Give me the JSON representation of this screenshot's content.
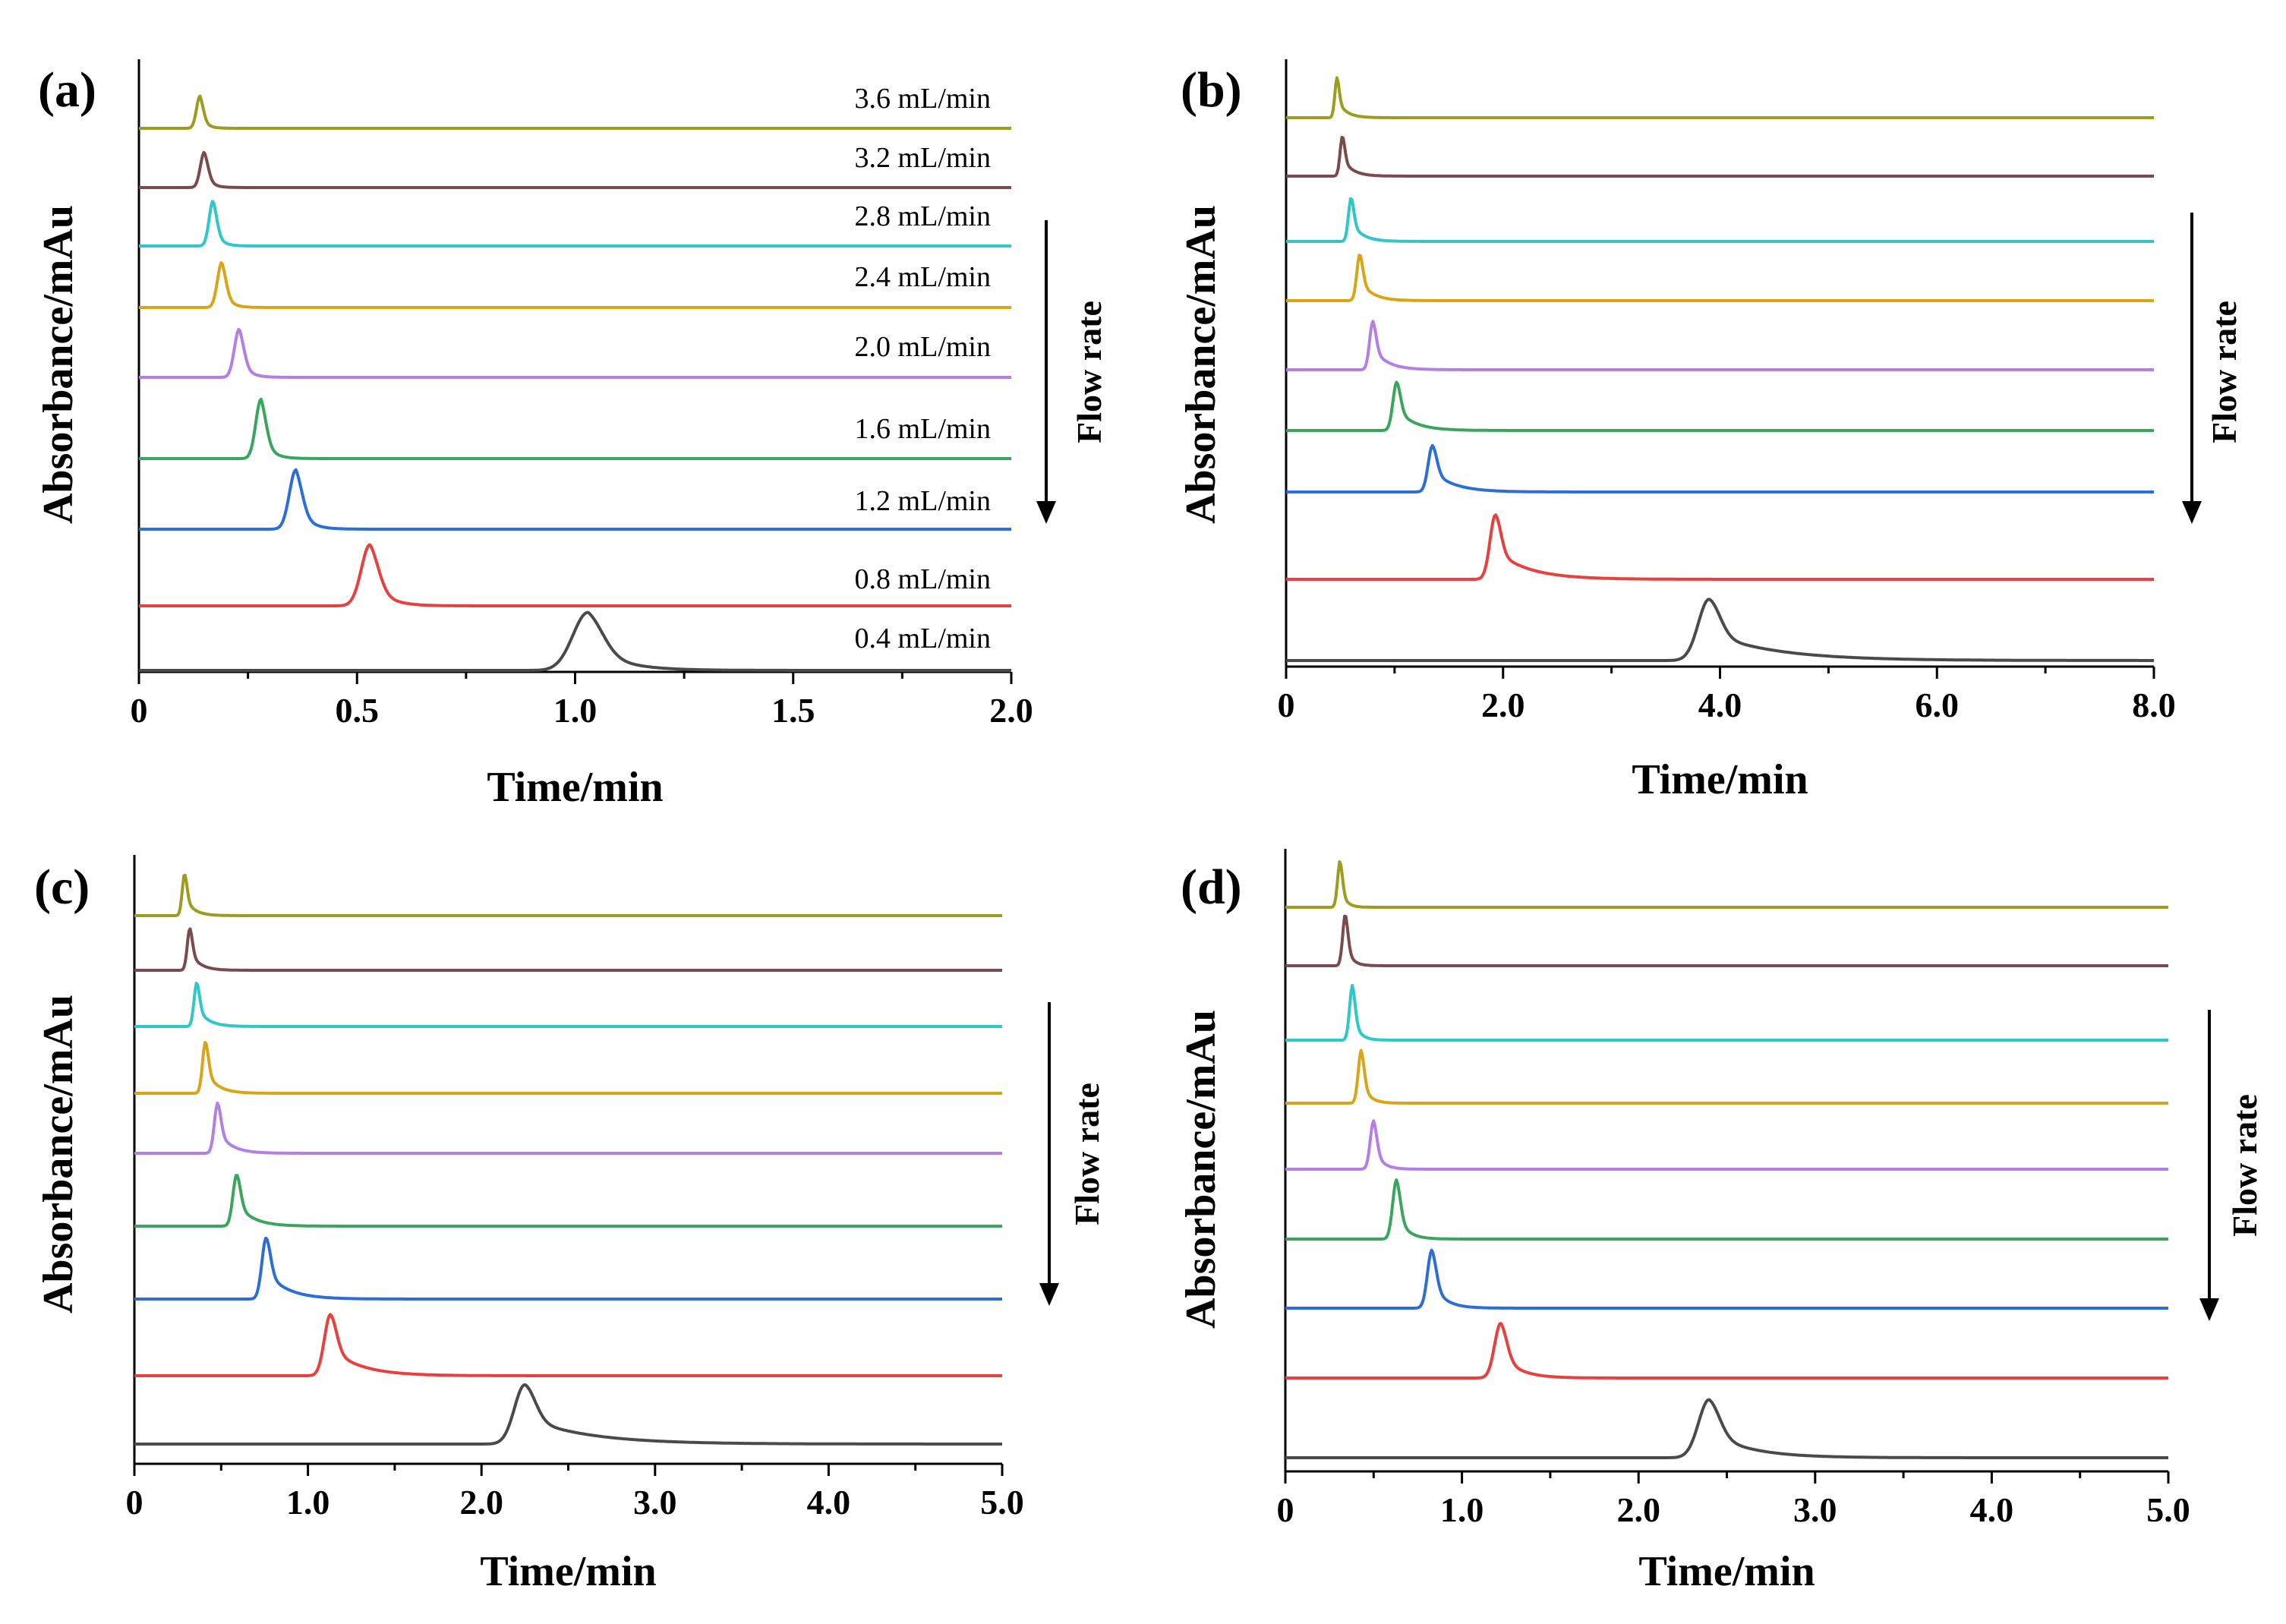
{
  "colors": {
    "s0": "#4a4a4a",
    "s1": "#e8403f",
    "s2": "#2b6fd4",
    "s3": "#3aa55c",
    "s4": "#b47ee6",
    "s5": "#d9a516",
    "s6": "#2fc7c7",
    "s7": "#7b4a4a",
    "s8": "#9c9c1e"
  },
  "flow_rate_label": "Flow rate",
  "chart_data": [
    {
      "panel": "(a)",
      "type": "line",
      "title": "",
      "xlabel": "Time/min",
      "ylabel": "Absorbance/mAu",
      "xlim": [
        0,
        2.0
      ],
      "xticks": [
        "0",
        "0.5",
        "1.0",
        "1.5",
        "2.0"
      ],
      "xtick_values": [
        0,
        0.5,
        1.0,
        1.5,
        2.0
      ],
      "grid": false,
      "annotation": "Flow rate (arrow pointing down)",
      "series": [
        {
          "name": "0.4 mL/min",
          "peak_time": 1.03,
          "peak_height": 0.9,
          "sigma": 0.035,
          "tail": 0.07
        },
        {
          "name": "0.8 mL/min",
          "peak_time": 0.53,
          "peak_height": 0.95,
          "sigma": 0.02,
          "tail": 0.035
        },
        {
          "name": "1.2 mL/min",
          "peak_time": 0.36,
          "peak_height": 0.92,
          "sigma": 0.015,
          "tail": 0.025
        },
        {
          "name": "1.6 mL/min",
          "peak_time": 0.28,
          "peak_height": 0.92,
          "sigma": 0.012,
          "tail": 0.02
        },
        {
          "name": "2.0 mL/min",
          "peak_time": 0.23,
          "peak_height": 0.75,
          "sigma": 0.011,
          "tail": 0.018
        },
        {
          "name": "2.4 mL/min",
          "peak_time": 0.19,
          "peak_height": 0.7,
          "sigma": 0.01,
          "tail": 0.016
        },
        {
          "name": "2.8 mL/min",
          "peak_time": 0.17,
          "peak_height": 0.7,
          "sigma": 0.009,
          "tail": 0.015
        },
        {
          "name": "3.2 mL/min",
          "peak_time": 0.15,
          "peak_height": 0.55,
          "sigma": 0.009,
          "tail": 0.014
        },
        {
          "name": "3.6 mL/min",
          "peak_time": 0.14,
          "peak_height": 0.5,
          "sigma": 0.008,
          "tail": 0.013
        }
      ]
    },
    {
      "panel": "(b)",
      "type": "line",
      "title": "",
      "xlabel": "Time/min",
      "ylabel": "Absorbance/mAu",
      "xlim": [
        0,
        8.0
      ],
      "xticks": [
        "0",
        "2.0",
        "4.0",
        "6.0",
        "8.0"
      ],
      "xtick_values": [
        0,
        2.0,
        4.0,
        6.0,
        8.0
      ],
      "grid": false,
      "annotation": "Flow rate (arrow pointing down)",
      "series": [
        {
          "name": "",
          "peak_time": 3.9,
          "peak_height": 0.95,
          "sigma": 0.1,
          "tail": 0.6
        },
        {
          "name": "",
          "peak_time": 1.93,
          "peak_height": 1.0,
          "sigma": 0.05,
          "tail": 0.3
        },
        {
          "name": "",
          "peak_time": 1.35,
          "peak_height": 0.72,
          "sigma": 0.04,
          "tail": 0.2
        },
        {
          "name": "",
          "peak_time": 1.02,
          "peak_height": 0.75,
          "sigma": 0.035,
          "tail": 0.16
        },
        {
          "name": "",
          "peak_time": 0.8,
          "peak_height": 0.75,
          "sigma": 0.03,
          "tail": 0.13
        },
        {
          "name": "",
          "peak_time": 0.68,
          "peak_height": 0.72,
          "sigma": 0.028,
          "tail": 0.11
        },
        {
          "name": "",
          "peak_time": 0.6,
          "peak_height": 0.68,
          "sigma": 0.025,
          "tail": 0.1
        },
        {
          "name": "",
          "peak_time": 0.52,
          "peak_height": 0.62,
          "sigma": 0.022,
          "tail": 0.09
        },
        {
          "name": "",
          "peak_time": 0.47,
          "peak_height": 0.62,
          "sigma": 0.02,
          "tail": 0.08
        }
      ]
    },
    {
      "panel": "(c)",
      "type": "line",
      "title": "",
      "xlabel": "Time/min",
      "ylabel": "Absorbance/mAu",
      "xlim": [
        0,
        5.0
      ],
      "xticks": [
        "0",
        "1.0",
        "2.0",
        "3.0",
        "4.0",
        "5.0"
      ],
      "xtick_values": [
        0,
        1.0,
        2.0,
        3.0,
        4.0,
        5.0
      ],
      "grid": false,
      "annotation": "Flow rate (arrow pointing down)",
      "series": [
        {
          "name": "",
          "peak_time": 2.25,
          "peak_height": 0.92,
          "sigma": 0.06,
          "tail": 0.35
        },
        {
          "name": "",
          "peak_time": 1.13,
          "peak_height": 0.95,
          "sigma": 0.035,
          "tail": 0.17
        },
        {
          "name": "",
          "peak_time": 0.76,
          "peak_height": 0.95,
          "sigma": 0.025,
          "tail": 0.12
        },
        {
          "name": "",
          "peak_time": 0.59,
          "peak_height": 0.8,
          "sigma": 0.022,
          "tail": 0.09
        },
        {
          "name": "",
          "peak_time": 0.48,
          "peak_height": 0.78,
          "sigma": 0.019,
          "tail": 0.075
        },
        {
          "name": "",
          "peak_time": 0.41,
          "peak_height": 0.8,
          "sigma": 0.017,
          "tail": 0.065
        },
        {
          "name": "",
          "peak_time": 0.36,
          "peak_height": 0.68,
          "sigma": 0.016,
          "tail": 0.06
        },
        {
          "name": "",
          "peak_time": 0.32,
          "peak_height": 0.65,
          "sigma": 0.015,
          "tail": 0.055
        },
        {
          "name": "",
          "peak_time": 0.29,
          "peak_height": 0.65,
          "sigma": 0.014,
          "tail": 0.05
        }
      ]
    },
    {
      "panel": "(d)",
      "type": "line",
      "title": "",
      "xlabel": "Time/min",
      "ylabel": "Absorbance/mAu",
      "xlim": [
        0,
        5.0
      ],
      "xticks": [
        "0",
        "1.0",
        "2.0",
        "3.0",
        "4.0",
        "5.0"
      ],
      "xtick_values": [
        0,
        1.0,
        2.0,
        3.0,
        4.0,
        5.0
      ],
      "grid": false,
      "annotation": "Flow rate (arrow pointing down)",
      "series": [
        {
          "name": "",
          "peak_time": 2.4,
          "peak_height": 0.9,
          "sigma": 0.06,
          "tail": 0.22
        },
        {
          "name": "",
          "peak_time": 1.22,
          "peak_height": 0.85,
          "sigma": 0.035,
          "tail": 0.1
        },
        {
          "name": "",
          "peak_time": 0.83,
          "peak_height": 0.9,
          "sigma": 0.025,
          "tail": 0.07
        },
        {
          "name": "",
          "peak_time": 0.63,
          "peak_height": 0.92,
          "sigma": 0.022,
          "tail": 0.055
        },
        {
          "name": "",
          "peak_time": 0.5,
          "peak_height": 0.75,
          "sigma": 0.019,
          "tail": 0.045
        },
        {
          "name": "",
          "peak_time": 0.43,
          "peak_height": 0.82,
          "sigma": 0.017,
          "tail": 0.04
        },
        {
          "name": "",
          "peak_time": 0.38,
          "peak_height": 0.85,
          "sigma": 0.016,
          "tail": 0.036
        },
        {
          "name": "",
          "peak_time": 0.34,
          "peak_height": 0.8,
          "sigma": 0.015,
          "tail": 0.033
        },
        {
          "name": "",
          "peak_time": 0.31,
          "peak_height": 0.72,
          "sigma": 0.014,
          "tail": 0.03
        }
      ]
    }
  ]
}
